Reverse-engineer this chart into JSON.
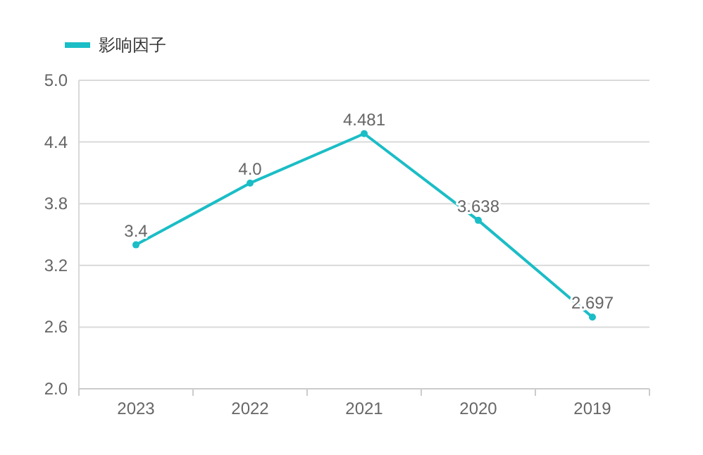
{
  "chart_data": {
    "type": "line",
    "categories": [
      "2023",
      "2022",
      "2021",
      "2020",
      "2019"
    ],
    "series": [
      {
        "name": "影响因子",
        "color": "#1bbdc6",
        "values": [
          3.4,
          4.0,
          4.481,
          3.638,
          2.697
        ],
        "value_labels": [
          "3.4",
          "4.0",
          "4.481",
          "3.638",
          "2.697"
        ]
      }
    ],
    "ylim": [
      2.0,
      5.0
    ],
    "yticks": [
      {
        "value": 2.0,
        "label": "2.0"
      },
      {
        "value": 2.6,
        "label": "2.6"
      },
      {
        "value": 3.2,
        "label": "3.2"
      },
      {
        "value": 3.8,
        "label": "3.8"
      },
      {
        "value": 4.4,
        "label": "4.4"
      },
      {
        "value": 5.0,
        "label": "5.0"
      }
    ],
    "grid": "y",
    "legend": "top left",
    "marker": "circle"
  }
}
